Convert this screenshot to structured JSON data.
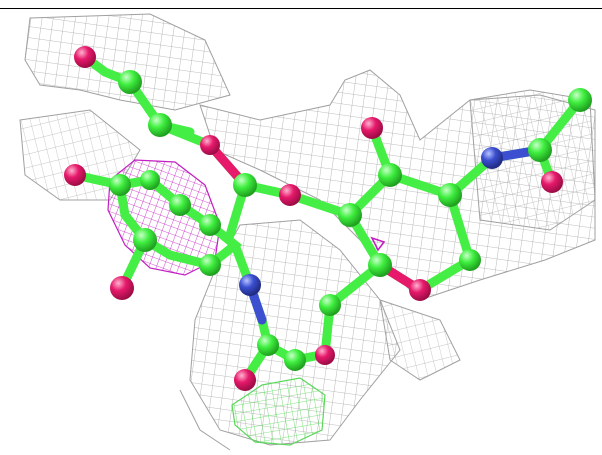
{
  "scene": {
    "kind": "molecular-density-render",
    "background": "#ffffff",
    "colors": {
      "carbon": "#3fef3f",
      "carbon_bond": "#44ee44",
      "oxygen": "#e6196b",
      "nitrogen": "#3b4fd0",
      "map_2fofc": "#9a9a9a",
      "map_positive": "#66e066",
      "map_negative": "#c21fc2"
    },
    "atom_names": [
      "carbon-atom",
      "oxygen-atom",
      "nitrogen-atom"
    ],
    "mesh_names": [
      "electron-density-mesh",
      "positive-difference-mesh",
      "negative-difference-mesh"
    ]
  }
}
